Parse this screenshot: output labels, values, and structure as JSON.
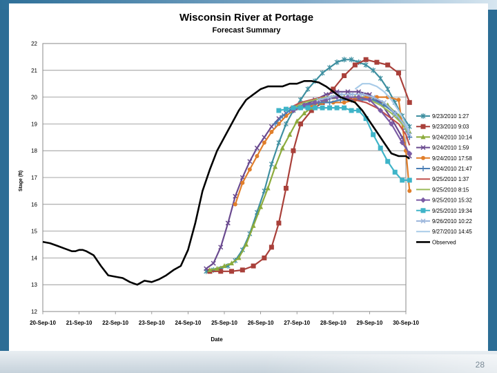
{
  "slide": {
    "page_number": "28"
  },
  "chart_data": {
    "type": "line",
    "title": "Wisconsin River at Portage",
    "subtitle": "Forecast Summary",
    "xlabel": "Date",
    "ylabel": "Stage (ft)",
    "ylim": [
      12,
      22
    ],
    "yticks": [
      "12",
      "13",
      "14",
      "15",
      "16",
      "17",
      "18",
      "19",
      "20",
      "21",
      "22"
    ],
    "x_categories": [
      "20-Sep-10",
      "21-Sep-10",
      "22-Sep-10",
      "23-Sep-10",
      "24-Sep-10",
      "25-Sep-10",
      "26-Sep-10",
      "27-Sep-10",
      "28-Sep-10",
      "29-Sep-10",
      "30-Sep-10"
    ],
    "grid": true,
    "legend_position": "right",
    "series": [
      {
        "name": "9/23/2010 1:27",
        "color": "#3e8fa0",
        "marker": "star",
        "x": [
          4.5,
          4.7,
          4.9,
          5.1,
          5.3,
          5.5,
          5.7,
          5.9,
          6.1,
          6.3,
          6.5,
          6.7,
          6.9,
          7.1,
          7.3,
          7.5,
          7.7,
          7.9,
          8.1,
          8.3,
          8.5,
          8.7,
          8.9,
          9.1,
          9.3,
          9.5,
          9.7,
          9.9,
          10.1
        ],
        "y": [
          13.5,
          13.55,
          13.6,
          13.7,
          13.9,
          14.3,
          14.9,
          15.7,
          16.5,
          17.5,
          18.3,
          19.0,
          19.5,
          19.9,
          20.3,
          20.6,
          20.9,
          21.1,
          21.3,
          21.4,
          21.4,
          21.3,
          21.2,
          21.0,
          20.7,
          20.3,
          19.8,
          19.3,
          18.9
        ]
      },
      {
        "name": "9/23/2010 9:03",
        "color": "#a9403a",
        "marker": "square",
        "x": [
          4.6,
          4.9,
          5.2,
          5.5,
          5.8,
          6.1,
          6.3,
          6.5,
          6.7,
          6.9,
          7.1,
          7.4,
          7.7,
          8.0,
          8.3,
          8.6,
          8.9,
          9.2,
          9.5,
          9.8,
          10.1
        ],
        "y": [
          13.5,
          13.5,
          13.5,
          13.55,
          13.7,
          14.0,
          14.4,
          15.3,
          16.6,
          18.0,
          19.0,
          19.5,
          19.8,
          20.3,
          20.8,
          21.2,
          21.4,
          21.3,
          21.2,
          20.9,
          19.8
        ]
      },
      {
        "name": "9/24/2010 10:14",
        "color": "#8cab3c",
        "marker": "triangle",
        "x": [
          4.6,
          4.8,
          5.0,
          5.2,
          5.4,
          5.6,
          5.8,
          6.0,
          6.2,
          6.4,
          6.6,
          6.8,
          7.0,
          7.2,
          7.4,
          7.6,
          7.8,
          8.0,
          8.3,
          8.6,
          8.9,
          9.2,
          9.5,
          9.8,
          10.1
        ],
        "y": [
          13.55,
          13.6,
          13.7,
          13.8,
          14.0,
          14.5,
          15.2,
          15.9,
          16.6,
          17.4,
          18.1,
          18.6,
          19.1,
          19.4,
          19.6,
          19.8,
          19.9,
          20.0,
          20.0,
          20.0,
          20.0,
          19.9,
          19.7,
          19.3,
          18.7
        ]
      },
      {
        "name": "9/24/2010 1:59",
        "color": "#6a4a8f",
        "marker": "x",
        "x": [
          4.5,
          4.7,
          4.9,
          5.1,
          5.3,
          5.5,
          5.7,
          5.9,
          6.1,
          6.3,
          6.5,
          6.7,
          6.9,
          7.2,
          7.5,
          7.8,
          8.1,
          8.4,
          8.7,
          9.0,
          9.3,
          9.6,
          9.9,
          10.1
        ],
        "y": [
          13.6,
          13.8,
          14.4,
          15.3,
          16.3,
          17.0,
          17.6,
          18.1,
          18.5,
          18.9,
          19.2,
          19.4,
          19.6,
          19.7,
          19.9,
          20.1,
          20.2,
          20.2,
          20.2,
          20.1,
          19.8,
          19.2,
          18.5,
          17.8
        ]
      },
      {
        "name": "9/24/2010 17:58",
        "color": "#e07e2a",
        "marker": "circle",
        "x": [
          5.3,
          5.5,
          5.7,
          5.9,
          6.1,
          6.3,
          6.5,
          6.7,
          6.9,
          7.1,
          7.4,
          7.7,
          8.0,
          8.3,
          8.6,
          8.9,
          9.2,
          9.5,
          9.8,
          10.0,
          10.1
        ],
        "y": [
          16.0,
          16.8,
          17.3,
          17.8,
          18.3,
          18.7,
          19.0,
          19.3,
          19.5,
          19.6,
          19.7,
          19.8,
          19.8,
          19.8,
          19.9,
          20.0,
          20.0,
          20.0,
          19.9,
          18.0,
          16.5
        ]
      },
      {
        "name": "9/24/2010 21:47",
        "color": "#4a7fb5",
        "marker": "plus",
        "x": [
          6.4,
          6.6,
          6.8,
          7.0,
          7.3,
          7.6,
          7.9,
          8.2,
          8.5,
          8.8,
          9.1,
          9.4,
          9.7,
          10.0,
          10.1
        ],
        "y": [
          19.0,
          19.3,
          19.5,
          19.6,
          19.7,
          19.8,
          19.8,
          19.9,
          19.9,
          19.9,
          19.9,
          19.7,
          19.4,
          18.8,
          18.5
        ]
      },
      {
        "name": "9/25/2010 1:37",
        "color": "#c0504d",
        "marker": "none",
        "x": [
          6.8,
          7.1,
          7.4,
          7.7,
          8.0,
          8.3,
          8.6,
          8.9,
          9.2,
          9.5,
          9.8,
          10.0,
          10.1
        ],
        "y": [
          19.6,
          19.8,
          19.9,
          20.0,
          20.0,
          20.0,
          19.9,
          19.8,
          19.6,
          19.3,
          19.0,
          18.6,
          18.2
        ]
      },
      {
        "name": "9/25/2010 8:15",
        "color": "#9bbb59",
        "marker": "none",
        "x": [
          6.9,
          7.2,
          7.5,
          7.8,
          8.1,
          8.4,
          8.7,
          9.0,
          9.3,
          9.6,
          9.9,
          10.1
        ],
        "y": [
          19.6,
          19.8,
          19.9,
          20.0,
          20.0,
          20.0,
          20.0,
          19.9,
          19.7,
          19.4,
          19.0,
          18.6
        ]
      },
      {
        "name": "9/25/2010 15:32",
        "color": "#7b5ba5",
        "marker": "diamond",
        "x": [
          6.9,
          7.2,
          7.5,
          7.8,
          8.1,
          8.4,
          8.7,
          9.0,
          9.3,
          9.6,
          9.9,
          10.1
        ],
        "y": [
          19.5,
          19.7,
          19.8,
          19.9,
          20.0,
          20.0,
          20.0,
          19.9,
          19.5,
          19.0,
          18.3,
          17.9
        ]
      },
      {
        "name": "9/25/2010 19:34",
        "color": "#3fb4c8",
        "marker": "square",
        "x": [
          6.5,
          6.7,
          6.9,
          7.1,
          7.3,
          7.5,
          7.7,
          7.9,
          8.1,
          8.3,
          8.5,
          8.7,
          8.9,
          9.1,
          9.3,
          9.5,
          9.7,
          9.9,
          10.1
        ],
        "y": [
          19.5,
          19.55,
          19.6,
          19.6,
          19.6,
          19.6,
          19.6,
          19.6,
          19.6,
          19.6,
          19.5,
          19.5,
          19.2,
          18.6,
          18.1,
          17.6,
          17.2,
          16.9,
          16.9
        ]
      },
      {
        "name": "9/26/2010 10:22",
        "color": "#9db7dc",
        "marker": "x",
        "x": [
          7.6,
          7.9,
          8.2,
          8.5,
          8.8,
          9.1,
          9.4,
          9.7,
          10.0,
          10.1
        ],
        "y": [
          19.9,
          20.0,
          20.1,
          20.1,
          20.1,
          20.0,
          19.8,
          19.4,
          18.9,
          18.6
        ]
      },
      {
        "name": "9/27/2010 14:45",
        "color": "#a8cbe8",
        "marker": "none",
        "x": [
          8.6,
          8.8,
          9.0,
          9.2,
          9.4,
          9.6,
          9.8,
          10.0,
          10.1
        ],
        "y": [
          20.3,
          20.5,
          20.5,
          20.4,
          20.2,
          19.9,
          19.5,
          19.0,
          18.7
        ]
      },
      {
        "name": "Observed",
        "color": "#000000",
        "marker": "none",
        "x": [
          0,
          0.2,
          0.4,
          0.6,
          0.8,
          0.9,
          1.0,
          1.1,
          1.2,
          1.4,
          1.6,
          1.8,
          2.0,
          2.2,
          2.4,
          2.6,
          2.8,
          3.0,
          3.2,
          3.4,
          3.6,
          3.8,
          4.0,
          4.2,
          4.4,
          4.6,
          4.8,
          5.0,
          5.2,
          5.4,
          5.6,
          5.8,
          6.0,
          6.2,
          6.4,
          6.6,
          6.8,
          7.0,
          7.2,
          7.4,
          7.6,
          7.8,
          8.0,
          8.2,
          8.4,
          8.6,
          8.8,
          9.0,
          9.2,
          9.4,
          9.6,
          9.8,
          10.0,
          10.1
        ],
        "y": [
          14.6,
          14.55,
          14.45,
          14.35,
          14.25,
          14.25,
          14.3,
          14.3,
          14.25,
          14.1,
          13.7,
          13.35,
          13.3,
          13.25,
          13.1,
          13.0,
          13.15,
          13.1,
          13.2,
          13.35,
          13.55,
          13.7,
          14.3,
          15.3,
          16.5,
          17.3,
          18.0,
          18.5,
          19.0,
          19.5,
          19.9,
          20.1,
          20.3,
          20.4,
          20.4,
          20.4,
          20.5,
          20.5,
          20.6,
          20.6,
          20.55,
          20.4,
          20.2,
          20.0,
          19.9,
          19.8,
          19.5,
          19.1,
          18.7,
          18.3,
          17.9,
          17.8,
          17.8,
          17.7
        ]
      }
    ]
  }
}
